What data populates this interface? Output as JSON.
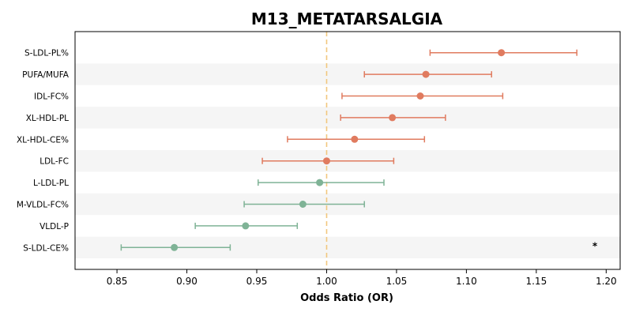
{
  "chart_data": {
    "type": "scatter",
    "title": "M13_METATARSALGIA",
    "xlabel": "Odds Ratio (OR)",
    "ylabel": "",
    "xlim": [
      0.82,
      1.21
    ],
    "xticks": [
      "0.85",
      "0.90",
      "0.95",
      "1.00",
      "1.05",
      "1.10",
      "1.15",
      "1.20"
    ],
    "xtick_values": [
      0.85,
      0.9,
      0.95,
      1.0,
      1.05,
      1.1,
      1.15,
      1.2
    ],
    "reference_line": 1.0,
    "grid": false,
    "colors": {
      "positive": "#e07b5f",
      "negative": "#7fb396",
      "reference": "#f2c77e",
      "band": "#f5f5f5"
    },
    "series": [
      {
        "category": "S-LDL-PL%",
        "or": 1.125,
        "lo": 1.074,
        "hi": 1.179
      },
      {
        "category": "PUFA/MUFA",
        "or": 1.071,
        "lo": 1.027,
        "hi": 1.118
      },
      {
        "category": "IDL-FC%",
        "or": 1.067,
        "lo": 1.011,
        "hi": 1.126
      },
      {
        "category": "XL-HDL-PL",
        "or": 1.047,
        "lo": 1.01,
        "hi": 1.085
      },
      {
        "category": "XL-HDL-CE%",
        "or": 1.02,
        "lo": 0.972,
        "hi": 1.07
      },
      {
        "category": "LDL-FC",
        "or": 1.0,
        "lo": 0.954,
        "hi": 1.048
      },
      {
        "category": "L-LDL-PL",
        "or": 0.995,
        "lo": 0.951,
        "hi": 1.041
      },
      {
        "category": "M-VLDL-FC%",
        "or": 0.983,
        "lo": 0.941,
        "hi": 1.027
      },
      {
        "category": "VLDL-P",
        "or": 0.942,
        "lo": 0.906,
        "hi": 0.979
      },
      {
        "category": "S-LDL-CE%",
        "or": 0.891,
        "lo": 0.853,
        "hi": 0.931
      }
    ],
    "annotations": [
      {
        "text": "*",
        "row": "S-LDL-CE%"
      }
    ]
  }
}
